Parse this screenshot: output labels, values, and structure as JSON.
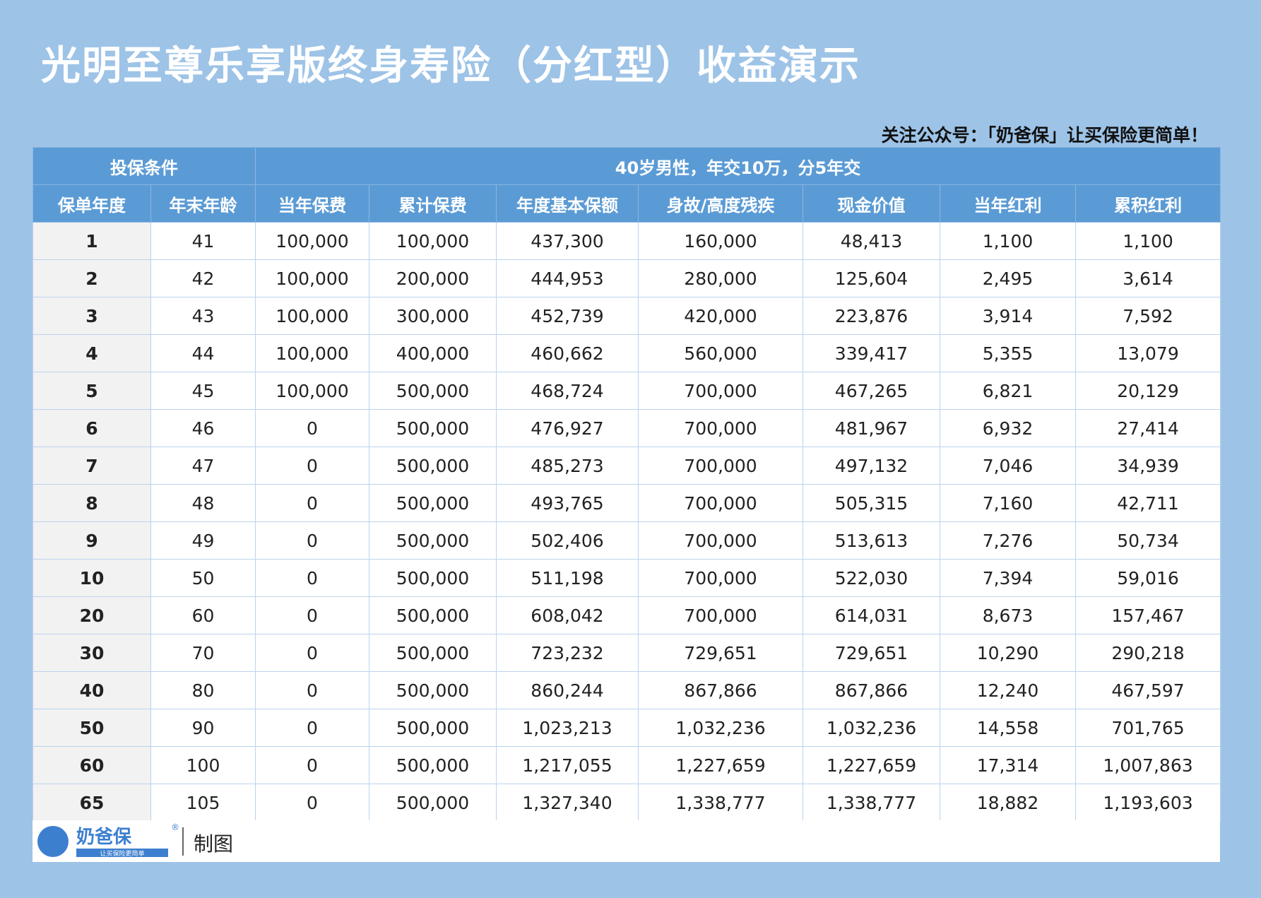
{
  "header": {
    "title": "光明至尊乐享版终身寿险（分红型）收益演示",
    "note": "关注公众号：「奶爸保」让买保险更简单！"
  },
  "table": {
    "groups": [
      {
        "label": "投保条件",
        "span": 2
      },
      {
        "label": "40岁男性，年交10万，分5年交",
        "span": 7
      }
    ],
    "columns": [
      "保单年度",
      "年末年龄",
      "当年保费",
      "累计保费",
      "年度基本保额",
      "身故/高度残疾",
      "现金价值",
      "当年红利",
      "累积红利"
    ],
    "rows": [
      [
        "1",
        "41",
        "100,000",
        "100,000",
        "437,300",
        "160,000",
        "48,413",
        "1,100",
        "1,100"
      ],
      [
        "2",
        "42",
        "100,000",
        "200,000",
        "444,953",
        "280,000",
        "125,604",
        "2,495",
        "3,614"
      ],
      [
        "3",
        "43",
        "100,000",
        "300,000",
        "452,739",
        "420,000",
        "223,876",
        "3,914",
        "7,592"
      ],
      [
        "4",
        "44",
        "100,000",
        "400,000",
        "460,662",
        "560,000",
        "339,417",
        "5,355",
        "13,079"
      ],
      [
        "5",
        "45",
        "100,000",
        "500,000",
        "468,724",
        "700,000",
        "467,265",
        "6,821",
        "20,129"
      ],
      [
        "6",
        "46",
        "0",
        "500,000",
        "476,927",
        "700,000",
        "481,967",
        "6,932",
        "27,414"
      ],
      [
        "7",
        "47",
        "0",
        "500,000",
        "485,273",
        "700,000",
        "497,132",
        "7,046",
        "34,939"
      ],
      [
        "8",
        "48",
        "0",
        "500,000",
        "493,765",
        "700,000",
        "505,315",
        "7,160",
        "42,711"
      ],
      [
        "9",
        "49",
        "0",
        "500,000",
        "502,406",
        "700,000",
        "513,613",
        "7,276",
        "50,734"
      ],
      [
        "10",
        "50",
        "0",
        "500,000",
        "511,198",
        "700,000",
        "522,030",
        "7,394",
        "59,016"
      ],
      [
        "20",
        "60",
        "0",
        "500,000",
        "608,042",
        "700,000",
        "614,031",
        "8,673",
        "157,467"
      ],
      [
        "30",
        "70",
        "0",
        "500,000",
        "723,232",
        "729,651",
        "729,651",
        "10,290",
        "290,218"
      ],
      [
        "40",
        "80",
        "0",
        "500,000",
        "860,244",
        "867,866",
        "867,866",
        "12,240",
        "467,597"
      ],
      [
        "50",
        "90",
        "0",
        "500,000",
        "1,023,213",
        "1,032,236",
        "1,032,236",
        "14,558",
        "701,765"
      ],
      [
        "60",
        "100",
        "0",
        "500,000",
        "1,217,055",
        "1,227,659",
        "1,227,659",
        "17,314",
        "1,007,863"
      ],
      [
        "65",
        "105",
        "0",
        "500,000",
        "1,327,340",
        "1,338,777",
        "1,338,777",
        "18,882",
        "1,193,603"
      ]
    ]
  },
  "footer": {
    "logo_name": "奶爸保",
    "logo_mark": "®",
    "logo_tagline": "让买保险更简单",
    "text": "制图"
  }
}
